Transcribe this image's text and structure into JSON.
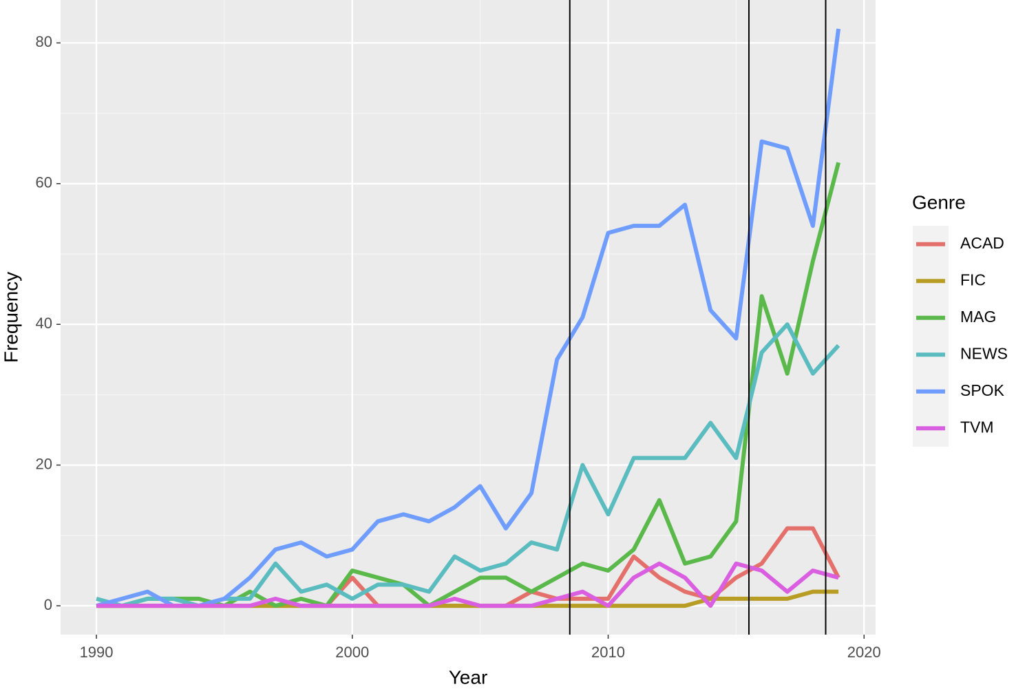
{
  "chart_data": {
    "type": "line",
    "x_label": "Year",
    "y_label": "Frequency",
    "legend_title": "Genre",
    "x": [
      1990,
      1991,
      1992,
      1993,
      1994,
      1995,
      1996,
      1997,
      1998,
      1999,
      2000,
      2001,
      2002,
      2003,
      2004,
      2005,
      2006,
      2007,
      2008,
      2009,
      2010,
      2011,
      2012,
      2013,
      2014,
      2015,
      2016,
      2017,
      2018,
      2019
    ],
    "series": [
      {
        "name": "ACAD",
        "color": "#e3706a",
        "values": [
          0,
          0,
          0,
          0,
          0,
          0,
          0,
          0,
          0,
          0,
          4,
          0,
          0,
          0,
          0,
          0,
          0,
          2,
          1,
          1,
          1,
          7,
          4,
          2,
          1,
          4,
          6,
          11,
          11,
          4
        ]
      },
      {
        "name": "FIC",
        "color": "#b89d25",
        "values": [
          0,
          0,
          0,
          0,
          0,
          0,
          0,
          0,
          0,
          0,
          0,
          0,
          0,
          0,
          0,
          0,
          0,
          0,
          0,
          0,
          0,
          0,
          0,
          0,
          1,
          1,
          1,
          1,
          2,
          2
        ]
      },
      {
        "name": "MAG",
        "color": "#5ab94a",
        "values": [
          0,
          0,
          1,
          1,
          1,
          0,
          2,
          0,
          1,
          0,
          5,
          4,
          3,
          0,
          2,
          4,
          4,
          2,
          4,
          6,
          5,
          8,
          15,
          6,
          7,
          12,
          44,
          33,
          49,
          63
        ]
      },
      {
        "name": "NEWS",
        "color": "#5bbcc0",
        "values": [
          1,
          0,
          1,
          1,
          0,
          1,
          1,
          6,
          2,
          3,
          1,
          3,
          3,
          2,
          7,
          5,
          6,
          9,
          8,
          20,
          13,
          21,
          21,
          21,
          26,
          21,
          36,
          40,
          33,
          37
        ]
      },
      {
        "name": "SPOK",
        "color": "#6f9cff",
        "values": [
          0,
          1,
          2,
          0,
          0,
          1,
          4,
          8,
          9,
          7,
          8,
          12,
          13,
          12,
          14,
          17,
          11,
          16,
          35,
          41,
          53,
          54,
          54,
          57,
          42,
          38,
          66,
          65,
          54,
          82
        ]
      },
      {
        "name": "TVM",
        "color": "#d95fe0",
        "values": [
          0,
          0,
          0,
          0,
          0,
          0,
          0,
          1,
          0,
          0,
          0,
          0,
          0,
          0,
          1,
          0,
          0,
          0,
          1,
          2,
          0,
          4,
          6,
          4,
          0,
          6,
          5,
          2,
          5,
          4
        ]
      }
    ],
    "vlines": [
      2008.5,
      2015.5,
      2018.5
    ],
    "xlim": [
      1988.6,
      2020.45
    ],
    "ylim": [
      -4.1,
      86.1
    ],
    "xticks": [
      1990,
      2000,
      2010,
      2020
    ],
    "yticks": [
      0,
      20,
      40,
      60,
      80
    ],
    "grid": true,
    "legend_position": "right"
  }
}
